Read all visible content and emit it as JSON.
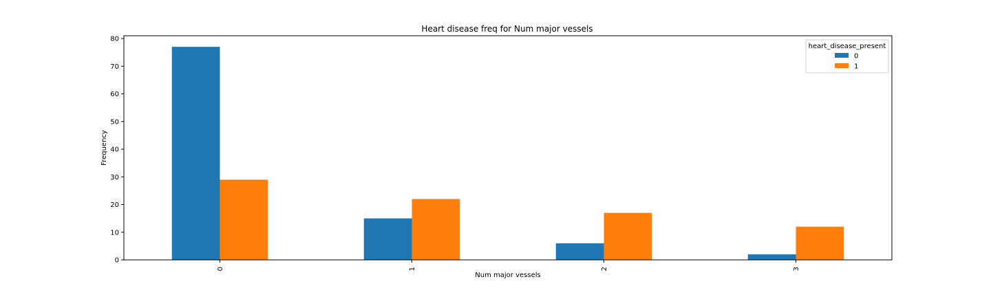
{
  "chart_data": {
    "type": "bar",
    "title": "Heart disease freq for Num major vessels",
    "xlabel": "Num major vessels",
    "ylabel": "Frequency",
    "categories": [
      "0",
      "1",
      "2",
      "3"
    ],
    "yticks": [
      "0",
      "10",
      "20",
      "30",
      "40",
      "50",
      "60",
      "70",
      "80"
    ],
    "ylim": [
      0,
      81
    ],
    "grid": false,
    "legend": {
      "title": "heart_disease_present",
      "placement": "top-right"
    },
    "series": [
      {
        "name": "0",
        "color": "#1f77b4",
        "values": [
          77,
          15,
          6,
          2
        ]
      },
      {
        "name": "1",
        "color": "#ff7f0e",
        "values": [
          29,
          22,
          17,
          12
        ]
      }
    ]
  }
}
